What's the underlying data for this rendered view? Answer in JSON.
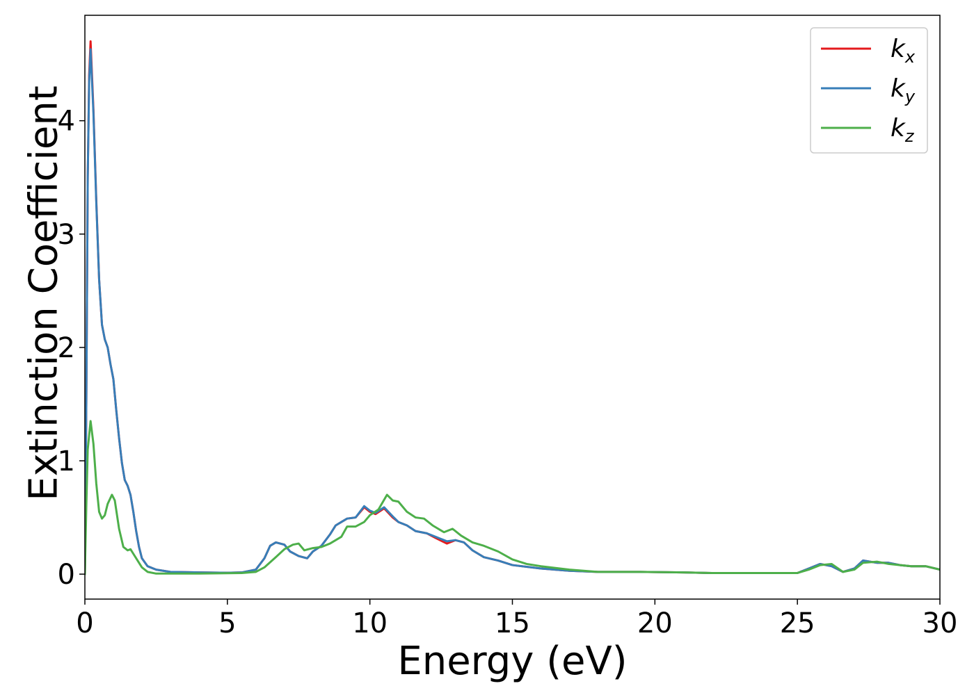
{
  "chart_data": {
    "type": "line",
    "xlabel": "Energy (eV)",
    "ylabel": "Extinction Coefficient",
    "xlim": [
      0,
      30
    ],
    "ylim": [
      -0.22,
      4.93
    ],
    "xticks": [
      0,
      5,
      10,
      15,
      20,
      25,
      30
    ],
    "yticks": [
      0,
      1,
      2,
      3,
      4
    ],
    "grid": false,
    "legend_position": "top-right",
    "series": [
      {
        "name": "k_x",
        "label_base": "k",
        "label_sub": "x",
        "color": "#e41a1c",
        "points": [
          [
            0,
            0.0
          ],
          [
            0.05,
            1.5
          ],
          [
            0.1,
            3.5
          ],
          [
            0.15,
            4.4
          ],
          [
            0.2,
            4.7
          ],
          [
            0.3,
            4.1
          ],
          [
            0.4,
            3.3
          ],
          [
            0.5,
            2.6
          ],
          [
            0.6,
            2.2
          ],
          [
            0.7,
            2.07
          ],
          [
            0.8,
            2.0
          ],
          [
            0.9,
            1.85
          ],
          [
            1.0,
            1.72
          ],
          [
            1.1,
            1.45
          ],
          [
            1.2,
            1.2
          ],
          [
            1.3,
            0.98
          ],
          [
            1.4,
            0.83
          ],
          [
            1.5,
            0.78
          ],
          [
            1.6,
            0.7
          ],
          [
            1.7,
            0.55
          ],
          [
            1.8,
            0.38
          ],
          [
            1.9,
            0.24
          ],
          [
            2.0,
            0.14
          ],
          [
            2.2,
            0.07
          ],
          [
            2.5,
            0.04
          ],
          [
            3,
            0.02
          ],
          [
            4,
            0.015
          ],
          [
            5,
            0.012
          ],
          [
            5.5,
            0.015
          ],
          [
            6.0,
            0.04
          ],
          [
            6.3,
            0.14
          ],
          [
            6.5,
            0.25
          ],
          [
            6.7,
            0.28
          ],
          [
            7.0,
            0.26
          ],
          [
            7.2,
            0.2
          ],
          [
            7.5,
            0.16
          ],
          [
            7.8,
            0.14
          ],
          [
            8.0,
            0.2
          ],
          [
            8.3,
            0.25
          ],
          [
            8.6,
            0.35
          ],
          [
            8.8,
            0.43
          ],
          [
            9.0,
            0.46
          ],
          [
            9.2,
            0.49
          ],
          [
            9.5,
            0.5
          ],
          [
            9.8,
            0.59
          ],
          [
            10.0,
            0.55
          ],
          [
            10.2,
            0.53
          ],
          [
            10.5,
            0.58
          ],
          [
            10.8,
            0.5
          ],
          [
            11.0,
            0.46
          ],
          [
            11.3,
            0.43
          ],
          [
            11.6,
            0.38
          ],
          [
            12.0,
            0.36
          ],
          [
            12.3,
            0.32
          ],
          [
            12.7,
            0.27
          ],
          [
            13.0,
            0.3
          ],
          [
            13.3,
            0.28
          ],
          [
            13.6,
            0.21
          ],
          [
            14.0,
            0.15
          ],
          [
            14.5,
            0.12
          ],
          [
            15.0,
            0.08
          ],
          [
            16.0,
            0.05
          ],
          [
            17.0,
            0.03
          ],
          [
            18.0,
            0.02
          ],
          [
            19.5,
            0.02
          ],
          [
            21,
            0.015
          ],
          [
            22,
            0.01
          ],
          [
            24,
            0.01
          ],
          [
            25.0,
            0.01
          ],
          [
            25.4,
            0.05
          ],
          [
            25.8,
            0.09
          ],
          [
            26.2,
            0.07
          ],
          [
            26.6,
            0.02
          ],
          [
            27.0,
            0.05
          ],
          [
            27.3,
            0.12
          ],
          [
            27.8,
            0.1
          ],
          [
            28.2,
            0.1
          ],
          [
            28.6,
            0.08
          ],
          [
            29.0,
            0.07
          ],
          [
            29.5,
            0.07
          ],
          [
            30.0,
            0.04
          ]
        ]
      },
      {
        "name": "k_y",
        "label_base": "k",
        "label_sub": "y",
        "color": "#377eb8",
        "points": [
          [
            0,
            0.0
          ],
          [
            0.05,
            1.5
          ],
          [
            0.1,
            3.5
          ],
          [
            0.15,
            4.35
          ],
          [
            0.2,
            4.63
          ],
          [
            0.3,
            4.07
          ],
          [
            0.4,
            3.28
          ],
          [
            0.5,
            2.6
          ],
          [
            0.6,
            2.2
          ],
          [
            0.7,
            2.07
          ],
          [
            0.8,
            2.0
          ],
          [
            0.9,
            1.85
          ],
          [
            1.0,
            1.72
          ],
          [
            1.1,
            1.45
          ],
          [
            1.2,
            1.2
          ],
          [
            1.3,
            0.98
          ],
          [
            1.4,
            0.83
          ],
          [
            1.5,
            0.78
          ],
          [
            1.6,
            0.7
          ],
          [
            1.7,
            0.55
          ],
          [
            1.8,
            0.38
          ],
          [
            1.9,
            0.24
          ],
          [
            2.0,
            0.14
          ],
          [
            2.2,
            0.07
          ],
          [
            2.5,
            0.04
          ],
          [
            3,
            0.02
          ],
          [
            4,
            0.015
          ],
          [
            5,
            0.012
          ],
          [
            5.5,
            0.015
          ],
          [
            6.0,
            0.04
          ],
          [
            6.3,
            0.14
          ],
          [
            6.5,
            0.25
          ],
          [
            6.7,
            0.28
          ],
          [
            7.0,
            0.26
          ],
          [
            7.2,
            0.2
          ],
          [
            7.5,
            0.16
          ],
          [
            7.8,
            0.14
          ],
          [
            8.0,
            0.2
          ],
          [
            8.3,
            0.25
          ],
          [
            8.6,
            0.35
          ],
          [
            8.8,
            0.43
          ],
          [
            9.0,
            0.46
          ],
          [
            9.2,
            0.49
          ],
          [
            9.5,
            0.5
          ],
          [
            9.8,
            0.6
          ],
          [
            10.0,
            0.56
          ],
          [
            10.2,
            0.54
          ],
          [
            10.5,
            0.59
          ],
          [
            10.8,
            0.51
          ],
          [
            11.0,
            0.46
          ],
          [
            11.3,
            0.43
          ],
          [
            11.6,
            0.38
          ],
          [
            12.0,
            0.36
          ],
          [
            12.3,
            0.33
          ],
          [
            12.7,
            0.29
          ],
          [
            13.0,
            0.3
          ],
          [
            13.3,
            0.28
          ],
          [
            13.6,
            0.21
          ],
          [
            14.0,
            0.15
          ],
          [
            14.5,
            0.12
          ],
          [
            15.0,
            0.08
          ],
          [
            16.0,
            0.05
          ],
          [
            17.0,
            0.03
          ],
          [
            18.0,
            0.02
          ],
          [
            19.5,
            0.02
          ],
          [
            21,
            0.015
          ],
          [
            22,
            0.01
          ],
          [
            24,
            0.01
          ],
          [
            25.0,
            0.01
          ],
          [
            25.4,
            0.05
          ],
          [
            25.8,
            0.09
          ],
          [
            26.2,
            0.07
          ],
          [
            26.6,
            0.02
          ],
          [
            27.0,
            0.05
          ],
          [
            27.3,
            0.12
          ],
          [
            27.8,
            0.1
          ],
          [
            28.2,
            0.1
          ],
          [
            28.6,
            0.08
          ],
          [
            29.0,
            0.07
          ],
          [
            29.5,
            0.07
          ],
          [
            30.0,
            0.04
          ]
        ]
      },
      {
        "name": "k_z",
        "label_base": "k",
        "label_sub": "z",
        "color": "#4daf4a",
        "points": [
          [
            0,
            0.0
          ],
          [
            0.05,
            0.6
          ],
          [
            0.1,
            1.1
          ],
          [
            0.2,
            1.35
          ],
          [
            0.3,
            1.15
          ],
          [
            0.4,
            0.8
          ],
          [
            0.5,
            0.55
          ],
          [
            0.6,
            0.49
          ],
          [
            0.7,
            0.52
          ],
          [
            0.8,
            0.62
          ],
          [
            0.95,
            0.7
          ],
          [
            1.05,
            0.65
          ],
          [
            1.2,
            0.4
          ],
          [
            1.35,
            0.24
          ],
          [
            1.5,
            0.21
          ],
          [
            1.6,
            0.22
          ],
          [
            1.7,
            0.18
          ],
          [
            1.85,
            0.12
          ],
          [
            2.0,
            0.06
          ],
          [
            2.2,
            0.02
          ],
          [
            2.5,
            0.005
          ],
          [
            4,
            0.005
          ],
          [
            5.5,
            0.01
          ],
          [
            6.0,
            0.02
          ],
          [
            6.3,
            0.06
          ],
          [
            6.7,
            0.15
          ],
          [
            7.0,
            0.22
          ],
          [
            7.3,
            0.26
          ],
          [
            7.5,
            0.27
          ],
          [
            7.7,
            0.21
          ],
          [
            8.0,
            0.23
          ],
          [
            8.3,
            0.24
          ],
          [
            8.6,
            0.27
          ],
          [
            9.0,
            0.33
          ],
          [
            9.2,
            0.42
          ],
          [
            9.5,
            0.42
          ],
          [
            9.8,
            0.46
          ],
          [
            10.0,
            0.52
          ],
          [
            10.3,
            0.57
          ],
          [
            10.6,
            0.7
          ],
          [
            10.8,
            0.65
          ],
          [
            11.0,
            0.64
          ],
          [
            11.3,
            0.55
          ],
          [
            11.6,
            0.5
          ],
          [
            11.9,
            0.49
          ],
          [
            12.2,
            0.43
          ],
          [
            12.6,
            0.37
          ],
          [
            12.9,
            0.4
          ],
          [
            13.2,
            0.34
          ],
          [
            13.6,
            0.28
          ],
          [
            14.0,
            0.25
          ],
          [
            14.5,
            0.2
          ],
          [
            15.0,
            0.13
          ],
          [
            15.5,
            0.09
          ],
          [
            16.0,
            0.07
          ],
          [
            17.0,
            0.04
          ],
          [
            18.0,
            0.02
          ],
          [
            19.5,
            0.02
          ],
          [
            21,
            0.015
          ],
          [
            22,
            0.01
          ],
          [
            24,
            0.01
          ],
          [
            25.0,
            0.01
          ],
          [
            25.4,
            0.04
          ],
          [
            25.8,
            0.08
          ],
          [
            26.2,
            0.09
          ],
          [
            26.6,
            0.02
          ],
          [
            27.0,
            0.04
          ],
          [
            27.3,
            0.1
          ],
          [
            27.8,
            0.11
          ],
          [
            28.2,
            0.09
          ],
          [
            28.6,
            0.08
          ],
          [
            29.0,
            0.07
          ],
          [
            29.5,
            0.07
          ],
          [
            30.0,
            0.04
          ]
        ]
      }
    ]
  }
}
